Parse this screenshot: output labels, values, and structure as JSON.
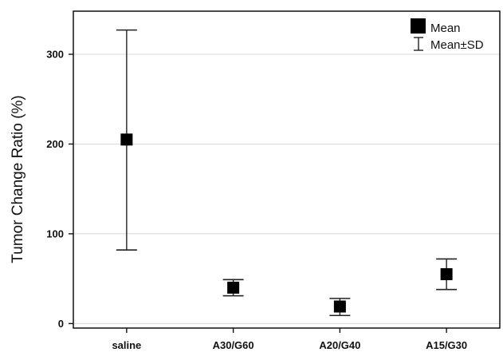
{
  "chart_data": {
    "type": "scatter",
    "title": "",
    "xlabel": "",
    "ylabel": "Tumor Change Ratio (%)",
    "ylim": [
      -5,
      348
    ],
    "yticks": [
      0,
      100,
      200,
      300
    ],
    "ytick_labels": [
      "0",
      "100",
      "200",
      "300"
    ],
    "grid": "horizontal",
    "legend_position": "top-right",
    "categories": [
      "saline",
      "A30/G60",
      "A20/G40",
      "A15/G30"
    ],
    "series": [
      {
        "name": "Mean",
        "values": [
          205,
          40,
          19,
          55
        ]
      }
    ],
    "error_bars": {
      "name": "Mean±SD",
      "lower": [
        82,
        31,
        9,
        38
      ],
      "upper": [
        327,
        49,
        28,
        72
      ]
    },
    "colors": {
      "marker": "#000000",
      "error_bar": "#222222",
      "grid": "#d8d8d8",
      "axis": "#111111"
    }
  }
}
